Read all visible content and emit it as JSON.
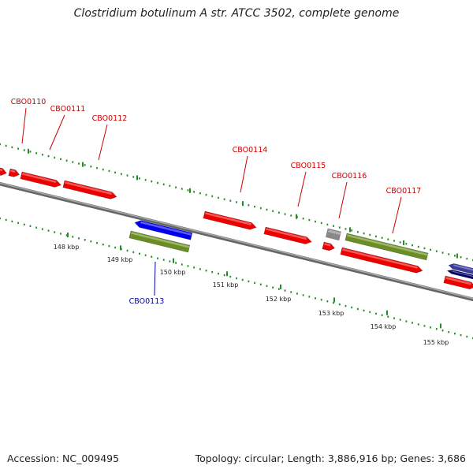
{
  "title": "Clostridium botulinum A str. ATCC 3502, complete genome",
  "footer": {
    "accession": "Accession: NC_009495",
    "summary": "Topology: circular; Length: 3,886,916 bp; Genes: 3,686"
  },
  "colors": {
    "forward_cds": "#ee0000",
    "reverse_cds": "#0000ee",
    "forward_label": "#cc0000",
    "reverse_label": "#0000aa",
    "misc_feature": "#6b8e23",
    "rna": "#888888",
    "backbone": "#888888",
    "tick": "#228b22"
  },
  "scale_labels": [
    "148 kbp",
    "149 kbp",
    "150 kbp",
    "151 kbp",
    "152 kbp",
    "153 kbp",
    "154 kbp",
    "155 kbp"
  ],
  "gene_labels": [
    {
      "text": "CBO0110",
      "strand": "forward"
    },
    {
      "text": "CBO0111",
      "strand": "forward"
    },
    {
      "text": "CBO0112",
      "strand": "forward"
    },
    {
      "text": "CBO0113",
      "strand": "reverse"
    },
    {
      "text": "CBO0114",
      "strand": "forward"
    },
    {
      "text": "CBO0115",
      "strand": "forward"
    },
    {
      "text": "CBO0116",
      "strand": "forward"
    },
    {
      "text": "CBO0117",
      "strand": "forward"
    }
  ]
}
